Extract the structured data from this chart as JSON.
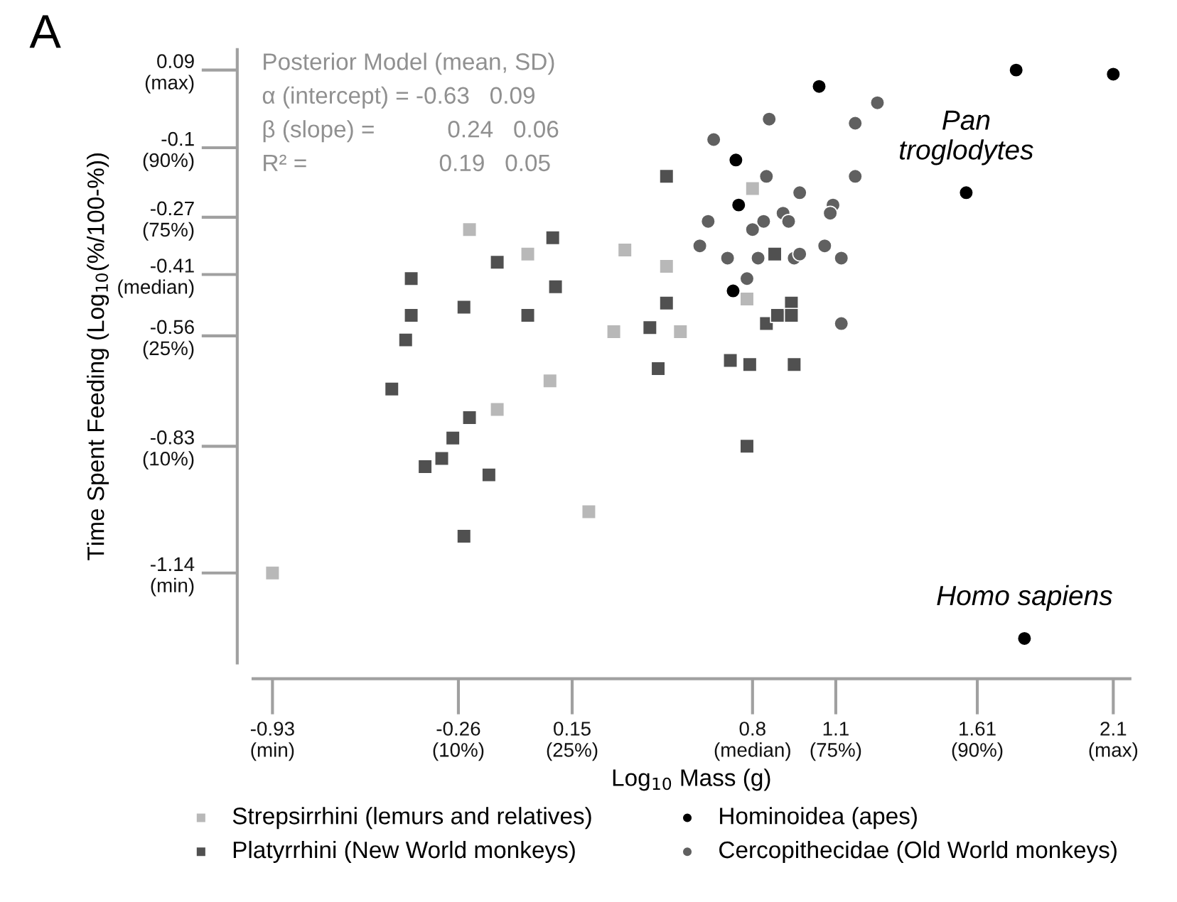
{
  "chart_data": {
    "type": "scatter",
    "xlabel": "Log$_{10}$ Mass (g)",
    "ylabel": "Time Spent Feeding (Log$_{10}$(%/100-%))",
    "xlim": [
      -1.0,
      2.16
    ],
    "ylim": [
      -1.36,
      0.14
    ],
    "xticks": [
      {
        "value": -0.93,
        "label": "-0.93\n(min)"
      },
      {
        "value": -0.26,
        "label": "-0.26\n(10%)"
      },
      {
        "value": 0.15,
        "label": "0.15\n(25%)"
      },
      {
        "value": 0.8,
        "label": "0.8\n(median)"
      },
      {
        "value": 1.1,
        "label": "1.1\n(75%)"
      },
      {
        "value": 1.61,
        "label": "1.61\n(90%)"
      },
      {
        "value": 2.1,
        "label": "2.1\n(max)"
      }
    ],
    "yticks": [
      {
        "value": 0.09,
        "label": "0.09\n(max)"
      },
      {
        "value": -0.1,
        "label": "-0.1\n(90%)"
      },
      {
        "value": -0.27,
        "label": "-0.27\n(75%)"
      },
      {
        "value": -0.41,
        "label": "-0.41\n(median)"
      },
      {
        "value": -0.56,
        "label": "-0.56\n(25%)"
      },
      {
        "value": -0.83,
        "label": "-0.83\n(10%)"
      },
      {
        "value": -1.14,
        "label": "-1.14\n(min)"
      }
    ],
    "legend": "bottom",
    "annotations": [
      "A",
      "Posterior Model (mean, SD)",
      "α (intercept) = -0.63   0.09",
      "β (slope) =           0.24   0.06",
      "R² =                    0.19   0.05",
      {
        "text": "Pan\ntroglodytes",
        "x": 1.57,
        "y": -0.21
      },
      {
        "text": "Homo sapiens",
        "x": 1.78,
        "y": -1.3
      }
    ],
    "series": [
      {
        "name": "Strepsirrhini (lemurs and relatives)",
        "color": "#b8b8b8",
        "marker": "square",
        "x": [
          -0.22,
          -0.01,
          0.34,
          0.49,
          0.3,
          0.54,
          0.8,
          0.78,
          0.07,
          -0.12,
          0.21,
          -0.93
        ],
        "values": [
          -0.3,
          -0.36,
          -0.35,
          -0.39,
          -0.55,
          -0.55,
          -0.2,
          -0.47,
          -0.67,
          -0.74,
          -0.99,
          -1.14
        ]
      },
      {
        "name": "Platyrrhini (New World monkeys)",
        "color": "#505050",
        "marker": "square",
        "x": [
          0.49,
          0.08,
          -0.12,
          -0.43,
          0.09,
          -0.43,
          -0.24,
          -0.01,
          -0.45,
          0.49,
          0.43,
          -0.5,
          0.46,
          -0.22,
          -0.28,
          -0.32,
          -0.38,
          -0.15,
          -0.24,
          0.88,
          0.85,
          0.89,
          0.94,
          0.94,
          0.72,
          0.79,
          0.95,
          0.78
        ],
        "values": [
          -0.17,
          -0.32,
          -0.38,
          -0.42,
          -0.44,
          -0.51,
          -0.49,
          -0.51,
          -0.57,
          -0.48,
          -0.54,
          -0.69,
          -0.64,
          -0.76,
          -0.81,
          -0.86,
          -0.88,
          -0.9,
          -1.05,
          -0.36,
          -0.53,
          -0.51,
          -0.48,
          -0.51,
          -0.62,
          -0.63,
          -0.63,
          -0.83
        ]
      },
      {
        "name": "Hominoidea (apes)",
        "color": "#000000",
        "marker": "circle",
        "x": [
          1.04,
          1.75,
          2.1,
          0.74,
          0.75,
          0.73,
          1.57,
          1.78
        ],
        "values": [
          0.05,
          0.09,
          0.08,
          -0.13,
          -0.24,
          -0.45,
          -0.21,
          -1.3
        ]
      },
      {
        "name": "Cercopithecidae (Old World monkeys)",
        "color": "#606060",
        "marker": "circle",
        "x": [
          1.25,
          0.86,
          1.17,
          0.66,
          0.85,
          1.17,
          0.97,
          1.09,
          1.08,
          0.91,
          0.93,
          0.84,
          0.8,
          0.64,
          0.61,
          0.71,
          0.82,
          0.95,
          0.97,
          1.06,
          1.12,
          0.78,
          1.12
        ],
        "values": [
          0.01,
          -0.03,
          -0.04,
          -0.08,
          -0.17,
          -0.17,
          -0.21,
          -0.24,
          -0.26,
          -0.26,
          -0.28,
          -0.28,
          -0.3,
          -0.28,
          -0.34,
          -0.37,
          -0.37,
          -0.37,
          -0.36,
          -0.34,
          -0.37,
          -0.42,
          -0.53
        ]
      }
    ]
  }
}
